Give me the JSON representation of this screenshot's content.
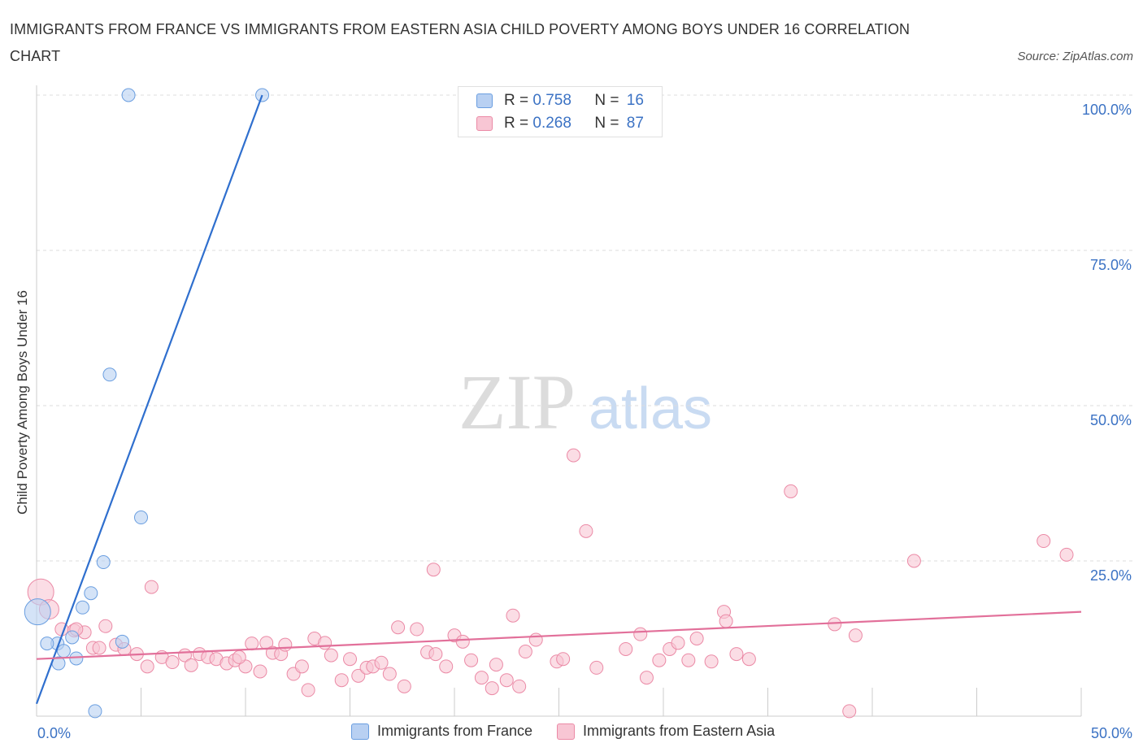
{
  "title": "IMMIGRANTS FROM FRANCE VS IMMIGRANTS FROM EASTERN ASIA CHILD POVERTY AMONG BOYS UNDER 16 CORRELATION CHART",
  "source": "Source: ZipAtlas.com",
  "watermark": {
    "zip": "ZIP",
    "atlas": "atlas"
  },
  "legend_stats": [
    {
      "r_label": "R = ",
      "r_value": "0.758",
      "n_label": "N = ",
      "n_value": "16"
    },
    {
      "r_label": "R = ",
      "r_value": "0.268",
      "n_label": "N = ",
      "n_value": "87"
    }
  ],
  "colors": {
    "france_fill": "#b8d0f2",
    "france_stroke": "#6a9ee0",
    "france_line": "#2f6fce",
    "asia_fill": "#f8c6d4",
    "asia_stroke": "#eb8aa6",
    "asia_line": "#e2709a",
    "tick_label": "#3b72c4",
    "grid": "#dddddd"
  },
  "chart_data": {
    "type": "scatter",
    "title": "IMMIGRANTS FROM FRANCE VS IMMIGRANTS FROM EASTERN ASIA CHILD POVERTY AMONG BOYS UNDER 16 CORRELATION CHART",
    "xlabel": "",
    "ylabel": "Child Poverty Among Boys Under 16",
    "xlim": [
      0,
      50
    ],
    "ylim": [
      0,
      100
    ],
    "x_tick_labels": [
      "0.0%",
      "50.0%"
    ],
    "y_tick_labels": [
      "25.0%",
      "50.0%",
      "75.0%",
      "100.0%"
    ],
    "y_tick_values": [
      25,
      50,
      75,
      100
    ],
    "grid": true,
    "series": [
      {
        "name": "Immigrants from France",
        "R": 0.758,
        "N": 16,
        "trend": {
          "x": [
            0.0,
            10.8
          ],
          "y": [
            2.0,
            100.0
          ]
        },
        "points": [
          [
            4.4,
            100.0
          ],
          [
            10.8,
            100.0
          ],
          [
            3.5,
            55.0
          ],
          [
            5.0,
            32.0
          ],
          [
            3.2,
            24.8
          ],
          [
            2.6,
            19.8
          ],
          [
            2.2,
            17.5
          ],
          [
            0.05,
            16.8
          ],
          [
            1.7,
            12.7
          ],
          [
            1.0,
            11.7
          ],
          [
            0.5,
            11.7
          ],
          [
            4.1,
            12.0
          ],
          [
            1.3,
            10.5
          ],
          [
            1.9,
            9.3
          ],
          [
            1.05,
            8.5
          ],
          [
            2.8,
            0.8
          ]
        ]
      },
      {
        "name": "Immigrants from Eastern Asia",
        "R": 0.268,
        "N": 87,
        "trend": {
          "x": [
            0.0,
            50.0
          ],
          "y": [
            9.2,
            16.8
          ]
        },
        "points": [
          [
            0.2,
            20.0
          ],
          [
            0.6,
            17.2
          ],
          [
            5.5,
            20.8
          ],
          [
            1.8,
            13.8
          ],
          [
            1.2,
            14.0
          ],
          [
            2.3,
            13.5
          ],
          [
            3.3,
            14.5
          ],
          [
            1.9,
            14.0
          ],
          [
            2.7,
            11.0
          ],
          [
            3.0,
            11.0
          ],
          [
            3.8,
            11.5
          ],
          [
            4.2,
            10.8
          ],
          [
            4.8,
            10.0
          ],
          [
            5.3,
            8.0
          ],
          [
            6.0,
            9.5
          ],
          [
            6.5,
            8.7
          ],
          [
            7.1,
            9.8
          ],
          [
            7.4,
            8.2
          ],
          [
            7.8,
            10.0
          ],
          [
            8.2,
            9.5
          ],
          [
            8.6,
            9.2
          ],
          [
            9.1,
            8.5
          ],
          [
            9.5,
            9.0
          ],
          [
            10.0,
            8.0
          ],
          [
            10.7,
            7.2
          ],
          [
            11.0,
            11.8
          ],
          [
            11.3,
            10.2
          ],
          [
            11.7,
            10.0
          ],
          [
            11.9,
            11.5
          ],
          [
            12.3,
            6.8
          ],
          [
            12.7,
            8.0
          ],
          [
            13.0,
            4.2
          ],
          [
            13.3,
            12.5
          ],
          [
            13.8,
            11.8
          ],
          [
            14.1,
            9.8
          ],
          [
            14.6,
            5.8
          ],
          [
            15.0,
            9.2
          ],
          [
            15.4,
            6.5
          ],
          [
            15.8,
            7.8
          ],
          [
            16.1,
            8.0
          ],
          [
            16.5,
            8.6
          ],
          [
            16.9,
            6.8
          ],
          [
            17.3,
            14.3
          ],
          [
            17.6,
            4.8
          ],
          [
            18.2,
            14.0
          ],
          [
            18.7,
            10.3
          ],
          [
            19.1,
            10.0
          ],
          [
            19.6,
            8.0
          ],
          [
            20.0,
            13.0
          ],
          [
            20.4,
            12.0
          ],
          [
            20.8,
            9.0
          ],
          [
            21.3,
            6.2
          ],
          [
            21.8,
            4.5
          ],
          [
            22.0,
            8.3
          ],
          [
            22.5,
            5.8
          ],
          [
            22.8,
            16.2
          ],
          [
            23.1,
            4.8
          ],
          [
            23.4,
            10.4
          ],
          [
            23.9,
            12.3
          ],
          [
            24.9,
            8.8
          ],
          [
            25.2,
            9.2
          ],
          [
            25.7,
            42.0
          ],
          [
            26.3,
            29.8
          ],
          [
            26.8,
            7.8
          ],
          [
            19.0,
            23.6
          ],
          [
            28.2,
            10.8
          ],
          [
            28.9,
            13.2
          ],
          [
            29.2,
            6.2
          ],
          [
            29.8,
            9.0
          ],
          [
            30.3,
            10.8
          ],
          [
            30.7,
            11.8
          ],
          [
            31.2,
            9.0
          ],
          [
            31.6,
            12.5
          ],
          [
            32.3,
            8.8
          ],
          [
            32.9,
            16.8
          ],
          [
            33.0,
            15.3
          ],
          [
            33.5,
            10.0
          ],
          [
            34.1,
            9.2
          ],
          [
            36.1,
            36.2
          ],
          [
            38.2,
            14.8
          ],
          [
            38.9,
            0.8
          ],
          [
            39.2,
            13.0
          ],
          [
            42.0,
            25.0
          ],
          [
            48.2,
            28.2
          ],
          [
            49.3,
            26.0
          ],
          [
            10.3,
            11.7
          ],
          [
            9.7,
            9.5
          ]
        ]
      }
    ]
  }
}
